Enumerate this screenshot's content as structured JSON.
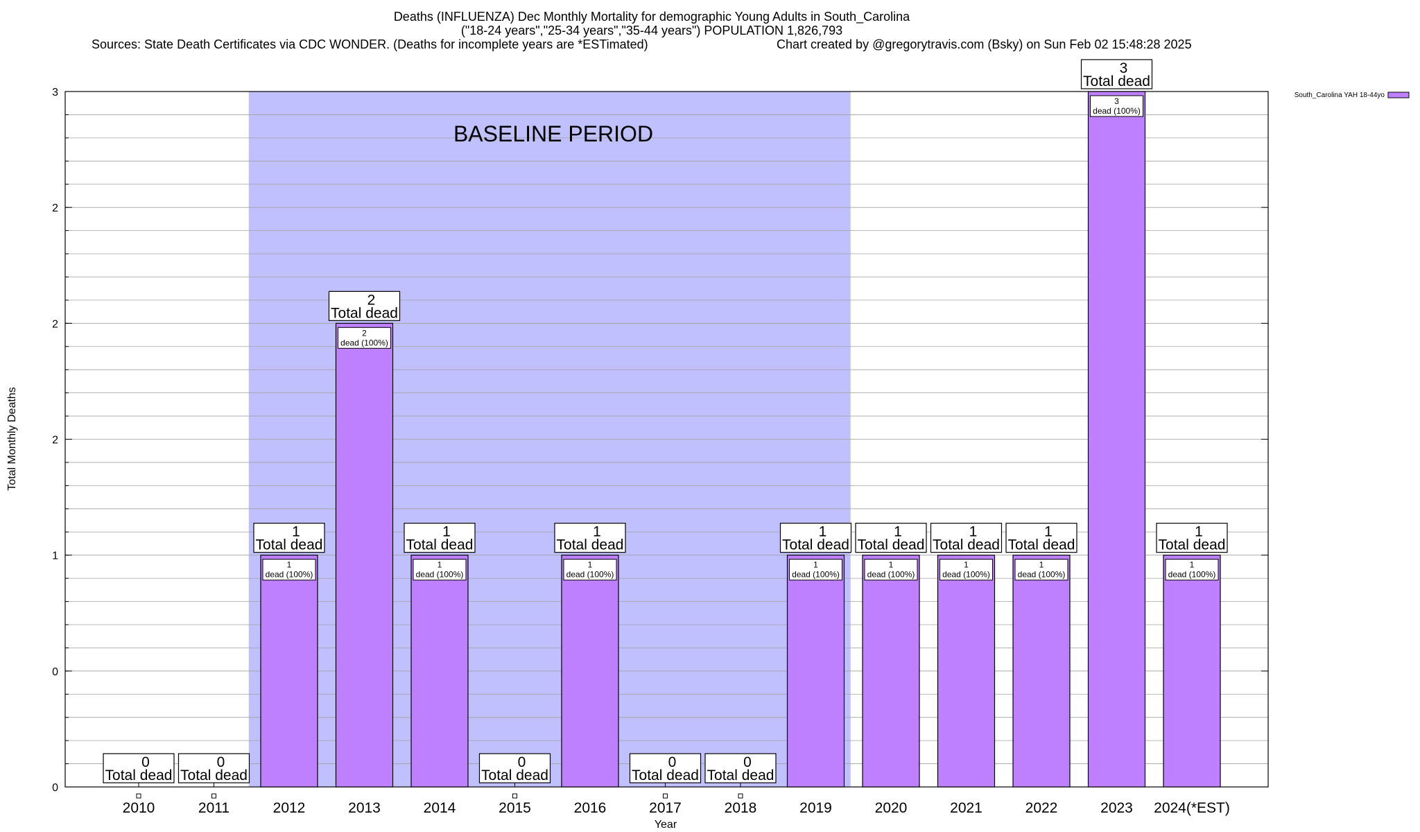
{
  "header": {
    "line1": "Deaths (INFLUENZA) Dec Monthly Mortality for demographic Young Adults in South_Carolina",
    "line2": "(\"18-24 years\",\"25-34 years\",\"35-44 years\") POPULATION 1,826,793",
    "sources": "Sources: State Death Certificates via CDC WONDER. (Deaths for incomplete years are *ESTimated)",
    "credit": "Chart created by @gregorytravis.com (Bsky) on Sun Feb 02 15:48:28 2025"
  },
  "chart_data": {
    "type": "bar",
    "categories": [
      "2010",
      "2011",
      "2012",
      "2013",
      "2014",
      "2015",
      "2016",
      "2017",
      "2018",
      "2019",
      "2020",
      "2021",
      "2022",
      "2023",
      "2024(*EST)"
    ],
    "series": [
      {
        "name": "South_Carolina YAH 18-44yo",
        "values": [
          0,
          0,
          1,
          2,
          1,
          0,
          1,
          0,
          0,
          1,
          1,
          1,
          1,
          3,
          1
        ],
        "color": "#bf80ff"
      }
    ],
    "xlabel": "Year",
    "ylabel": "Total Monthly Deaths",
    "ylim": [
      0,
      3
    ],
    "yticks": [
      0,
      0.5,
      1,
      1.5,
      2,
      2.5,
      3
    ],
    "ytick_labels": [
      "0",
      "0",
      "1",
      "2",
      "2",
      "2",
      "3"
    ],
    "grid": true,
    "legend": "top-right",
    "baseline_label": "BASELINE PERIOD",
    "baseline_range": [
      "2012",
      "2019"
    ],
    "baseline_color": "#c0c0ff",
    "total_label": "Total dead",
    "segment_suffix": "dead (100%)"
  }
}
